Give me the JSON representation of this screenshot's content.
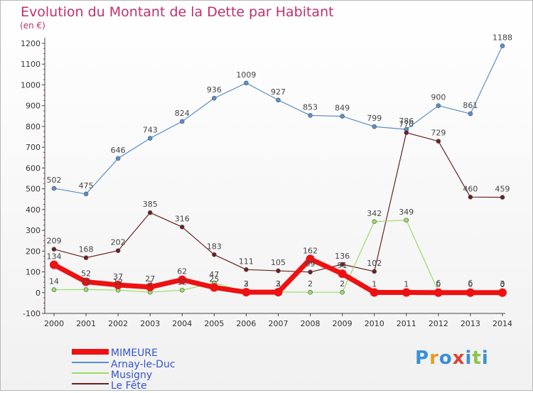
{
  "title": "Evolution du Montant de la Dette par Habitant",
  "unit": "(en €)",
  "brand": {
    "letters": [
      "P",
      "r",
      "o",
      "x",
      "i",
      "t",
      "i"
    ],
    "colors": [
      "#3a8fd8",
      "#e0a020",
      "#3a8fd8",
      "#e04030",
      "#3a8fd8",
      "#8bc34a",
      "#3a8fd8"
    ]
  },
  "chart_data": {
    "type": "line",
    "x": [
      2000,
      2001,
      2002,
      2003,
      2004,
      2005,
      2006,
      2007,
      2008,
      2009,
      2010,
      2011,
      2012,
      2013,
      2014
    ],
    "ylim": [
      -100,
      1200
    ],
    "yticks": [
      -100,
      0,
      100,
      200,
      300,
      400,
      500,
      600,
      700,
      800,
      900,
      1000,
      1100,
      1200
    ],
    "grid": false,
    "legend_position": "bottom-left",
    "series": [
      {
        "name": "MIMEURE",
        "color": "#ee1111",
        "values": [
          134,
          52,
          37,
          27,
          62,
          25,
          2,
          2,
          162,
          91,
          1,
          1,
          0,
          0,
          0
        ],
        "labels": [
          "134",
          "52",
          "37",
          "27",
          "62",
          "25",
          "2",
          "2",
          "162",
          "91",
          "1",
          "1",
          "0",
          "0",
          "0"
        ]
      },
      {
        "name": "Arnay-le-Duc",
        "color": "#5a8fc8",
        "values": [
          502,
          475,
          646,
          743,
          824,
          936,
          1009,
          927,
          853,
          849,
          799,
          786,
          900,
          861,
          1188
        ],
        "labels": [
          "502",
          "475",
          "646",
          "743",
          "824",
          "936",
          "1009",
          "927",
          "853",
          "849",
          "799",
          "786",
          "900",
          "861",
          "1188"
        ]
      },
      {
        "name": "Musigny",
        "color": "#99dd66",
        "values": [
          14,
          15,
          12,
          2,
          12,
          47,
          3,
          3,
          2,
          2,
          342,
          349,
          6,
          6,
          3
        ],
        "labels": [
          "14",
          "15",
          "12",
          "2",
          "12",
          "47",
          "3",
          "3",
          "2",
          "2",
          "342",
          "349",
          "6",
          "6",
          "3"
        ]
      },
      {
        "name": "Le Fête",
        "color": "#6b2020",
        "values": [
          209,
          168,
          202,
          385,
          316,
          183,
          111,
          105,
          99,
          136,
          102,
          770,
          729,
          460,
          459
        ],
        "labels": [
          "209",
          "168",
          "202",
          "385",
          "316",
          "183",
          "111",
          "105",
          "99",
          "136",
          "102",
          "770",
          "729",
          "460",
          "459"
        ]
      }
    ]
  }
}
